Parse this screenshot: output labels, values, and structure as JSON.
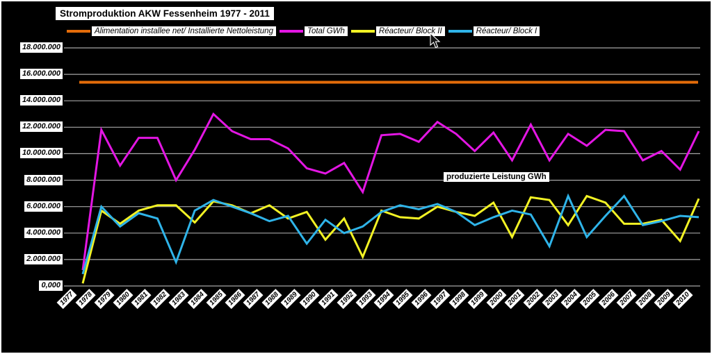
{
  "title": "Stromproduktion AKW Fessenheim 1977 - 2011",
  "annotation": {
    "text": "produzierte Leistung GWh"
  },
  "colors": {
    "background": "#000000",
    "gridline": "#a6a6a6",
    "label_box": "#ffffff",
    "label_text": "#000000",
    "installed_capacity": "#e46c0a",
    "total": "#e316e3",
    "block2": "#f2f224",
    "block1": "#2fb4e9"
  },
  "legend": [
    {
      "slug": "installed-capacity",
      "label": "Alimentation installee net/ Installierte Nettoleistung",
      "color": "#e46c0a"
    },
    {
      "slug": "total-gwh",
      "label": "Total GWh",
      "color": "#e316e3"
    },
    {
      "slug": "block-2",
      "label": "Réacteur/ Block II",
      "color": "#f2f224"
    },
    {
      "slug": "block-1",
      "label": "Réacteur/ Block I",
      "color": "#2fb4e9"
    }
  ],
  "y_axis": {
    "tick_labels": [
      "18.000.000",
      "16.000.000",
      "14.000.000",
      "12.000.000",
      "10.000.000",
      "8.000.000",
      "6.000.000",
      "4.000.000",
      "2.000.000",
      "0,000"
    ]
  },
  "chart_data": {
    "type": "line",
    "title": "Stromproduktion AKW Fessenheim 1977 - 2011",
    "x": [
      1977,
      1978,
      1979,
      1980,
      1981,
      1982,
      1983,
      1984,
      1985,
      1986,
      1987,
      1988,
      1989,
      1990,
      1991,
      1992,
      1993,
      1994,
      1995,
      1996,
      1997,
      1998,
      1999,
      2000,
      2001,
      2002,
      2003,
      2004,
      2005,
      2006,
      2007,
      2008,
      2009,
      2010
    ],
    "ylim": [
      0,
      18000000
    ],
    "y_tick_step": 2000000,
    "grid": "horizontal",
    "legend_position": "top",
    "annotation": {
      "text": "produzierte Leistung GWh",
      "near_x": 1996,
      "near_y": 8300000
    },
    "series": [
      {
        "name": "Alimentation installee net/ Installierte Nettoleistung",
        "slug": "installed-capacity",
        "color": "#e46c0a",
        "constant": 15400000
      },
      {
        "name": "Total GWh",
        "slug": "total-gwh",
        "color": "#e316e3",
        "values": [
          1200000,
          11800000,
          9100000,
          11200000,
          11200000,
          8000000,
          10300000,
          13000000,
          11700000,
          11100000,
          11100000,
          10400000,
          8900000,
          8500000,
          9300000,
          7100000,
          11400000,
          11500000,
          10900000,
          12400000,
          11500000,
          10200000,
          11600000,
          9500000,
          12200000,
          9500000,
          11500000,
          10600000,
          11800000,
          11700000,
          9500000,
          10200000,
          8800000,
          11700000
        ]
      },
      {
        "name": "Réacteur/ Block II",
        "slug": "block-2",
        "color": "#f2f224",
        "values": [
          200000,
          5700000,
          4700000,
          5700000,
          6100000,
          6100000,
          4800000,
          6400000,
          6100000,
          5500000,
          6100000,
          5100000,
          5600000,
          3500000,
          5100000,
          2200000,
          5700000,
          5200000,
          5100000,
          6000000,
          5600000,
          5300000,
          6300000,
          3700000,
          6700000,
          6500000,
          4600000,
          6800000,
          6300000,
          4700000,
          4700000,
          5000000,
          3400000,
          6600000
        ]
      },
      {
        "name": "Réacteur/ Block I",
        "slug": "block-1",
        "color": "#2fb4e9",
        "values": [
          900000,
          6000000,
          4500000,
          5500000,
          5100000,
          1800000,
          5700000,
          6500000,
          6000000,
          5500000,
          4900000,
          5300000,
          3200000,
          5000000,
          4000000,
          4500000,
          5600000,
          6100000,
          5800000,
          6200000,
          5600000,
          4600000,
          5200000,
          5700000,
          5400000,
          3000000,
          6800000,
          3700000,
          5300000,
          6800000,
          4600000,
          4900000,
          5300000,
          5200000
        ]
      }
    ]
  }
}
